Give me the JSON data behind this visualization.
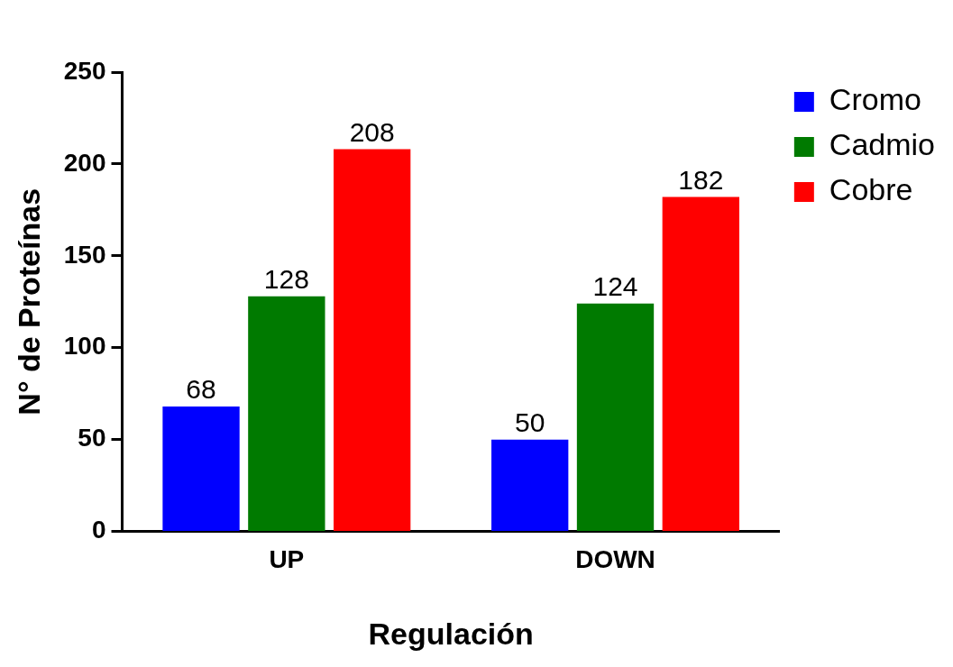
{
  "chart_data": {
    "type": "bar",
    "xlabel": "Regulación",
    "ylabel": "N° de Proteínas",
    "categories": [
      "UP",
      "DOWN"
    ],
    "series": [
      {
        "name": "Cromo",
        "color": "#0000ff",
        "values": [
          68,
          50
        ]
      },
      {
        "name": "Cadmio",
        "color": "#007a00",
        "values": [
          128,
          124
        ]
      },
      {
        "name": "Cobre",
        "color": "#ff0000",
        "values": [
          208,
          182
        ]
      }
    ],
    "ylim": [
      0,
      250
    ],
    "yticks": [
      0,
      50,
      100,
      150,
      200,
      250
    ],
    "grid": false,
    "legend": "top right",
    "data_labels": true
  }
}
